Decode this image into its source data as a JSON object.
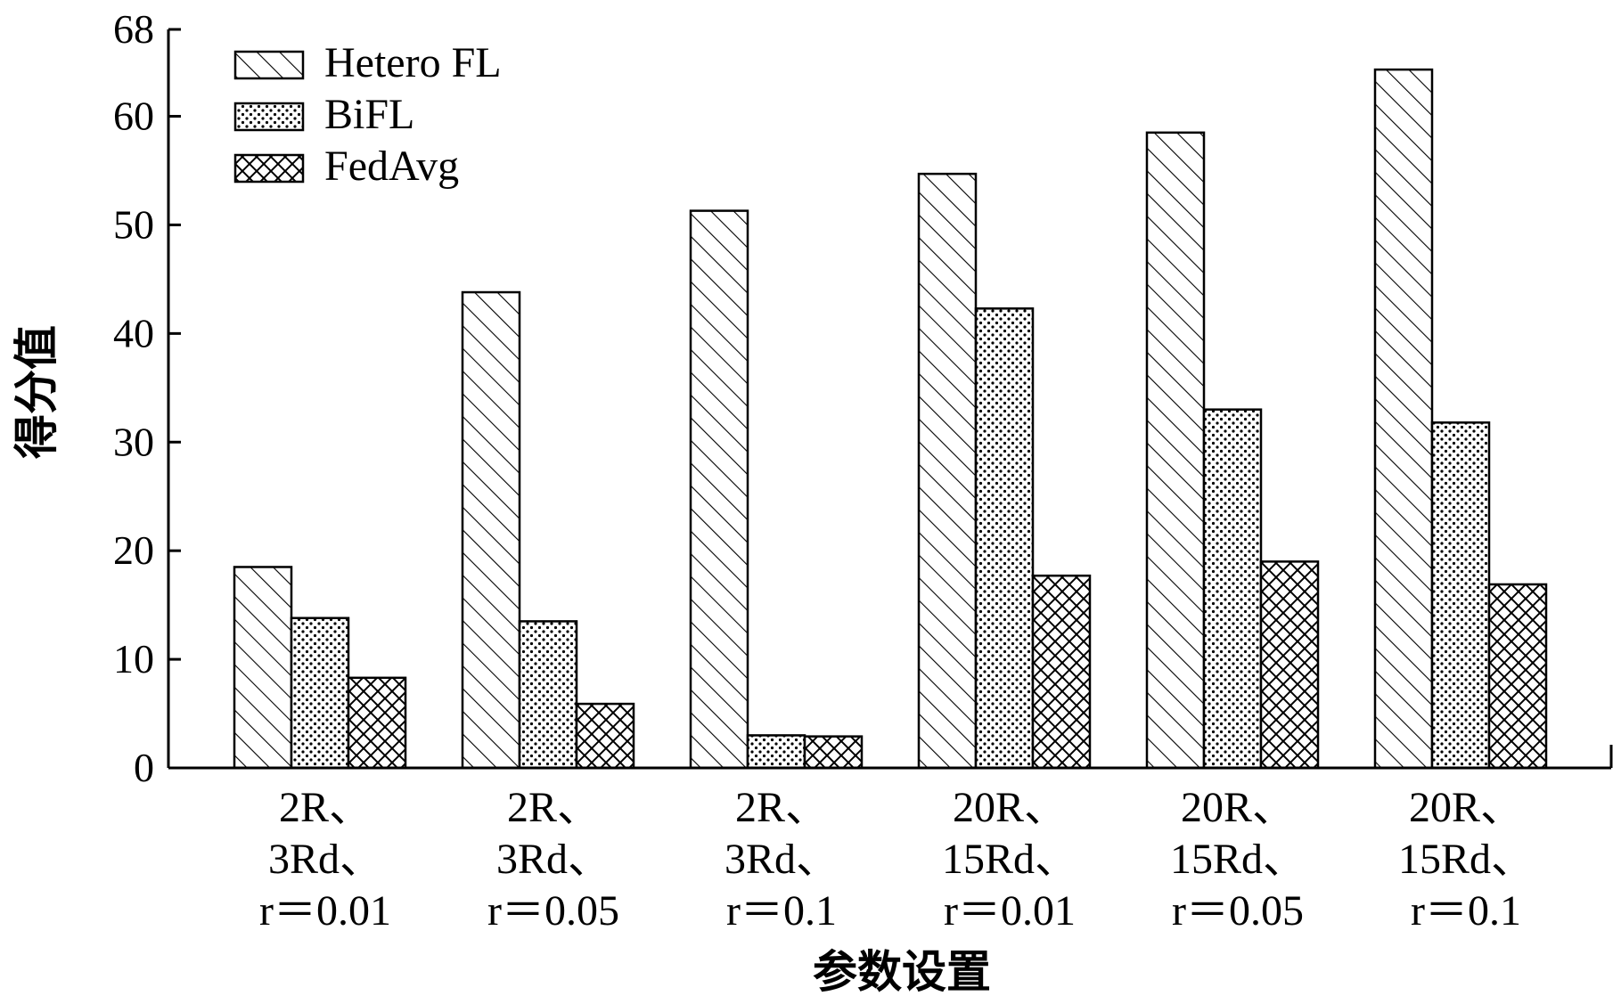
{
  "chart_data": {
    "type": "bar",
    "xlabel": "参数设置",
    "ylabel": "得分值",
    "ylim": [
      0,
      68
    ],
    "yticks": [
      0,
      10,
      20,
      30,
      40,
      50,
      60,
      68
    ],
    "grid": false,
    "legend_position": "top-left",
    "categories": [
      [
        "2R、",
        "3Rd、",
        "r＝0.01"
      ],
      [
        "2R、",
        "3Rd、",
        "r＝0.05"
      ],
      [
        "2R、",
        "3Rd、",
        "r＝0.1"
      ],
      [
        "20R、",
        "15Rd、",
        "r＝0.01"
      ],
      [
        "20R、",
        "15Rd、",
        "r＝0.05"
      ],
      [
        "20R、",
        "15Rd、",
        "r＝0.1"
      ]
    ],
    "series": [
      {
        "name": "Hetero FL",
        "pattern": "diagonal-hatch",
        "values": [
          18.5,
          43.8,
          51.3,
          54.7,
          58.5,
          64.3
        ]
      },
      {
        "name": "BiFL",
        "pattern": "dots",
        "values": [
          13.8,
          13.5,
          3.0,
          42.3,
          33.0,
          31.8
        ]
      },
      {
        "name": "FedAvg",
        "pattern": "cross-hatch",
        "values": [
          8.3,
          5.9,
          2.9,
          17.7,
          19.0,
          16.9
        ]
      }
    ]
  }
}
